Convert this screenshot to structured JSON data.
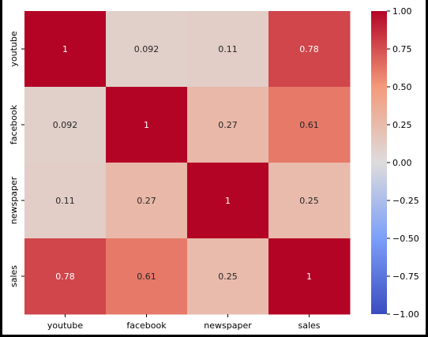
{
  "chart_data": {
    "type": "heatmap",
    "title": "",
    "xlabel": "",
    "ylabel": "",
    "x_categories": [
      "youtube",
      "facebook",
      "newspaper",
      "sales"
    ],
    "y_categories": [
      "youtube",
      "facebook",
      "newspaper",
      "sales"
    ],
    "values": [
      [
        1,
        0.092,
        0.11,
        0.78
      ],
      [
        0.092,
        1,
        0.27,
        0.61
      ],
      [
        0.11,
        0.27,
        1,
        0.25
      ],
      [
        0.78,
        0.61,
        0.25,
        1
      ]
    ],
    "annotations": [
      [
        "1",
        "0.092",
        "0.11",
        "0.78"
      ],
      [
        "0.092",
        "1",
        "0.27",
        "0.61"
      ],
      [
        "0.11",
        "0.27",
        "1",
        "0.25"
      ],
      [
        "0.78",
        "0.61",
        "0.25",
        "1"
      ]
    ],
    "colormap": "coolwarm",
    "vmin": -1.0,
    "vmax": 1.0,
    "colorbar_ticks": [
      1.0,
      0.75,
      0.5,
      0.25,
      0.0,
      -0.25,
      -0.5,
      -0.75,
      -1.0
    ],
    "colorbar_tick_labels": [
      "1.00",
      "0.75",
      "0.50",
      "0.25",
      "0.00",
      "−0.25",
      "−0.50",
      "−0.75",
      "−1.00"
    ],
    "grid": false
  }
}
